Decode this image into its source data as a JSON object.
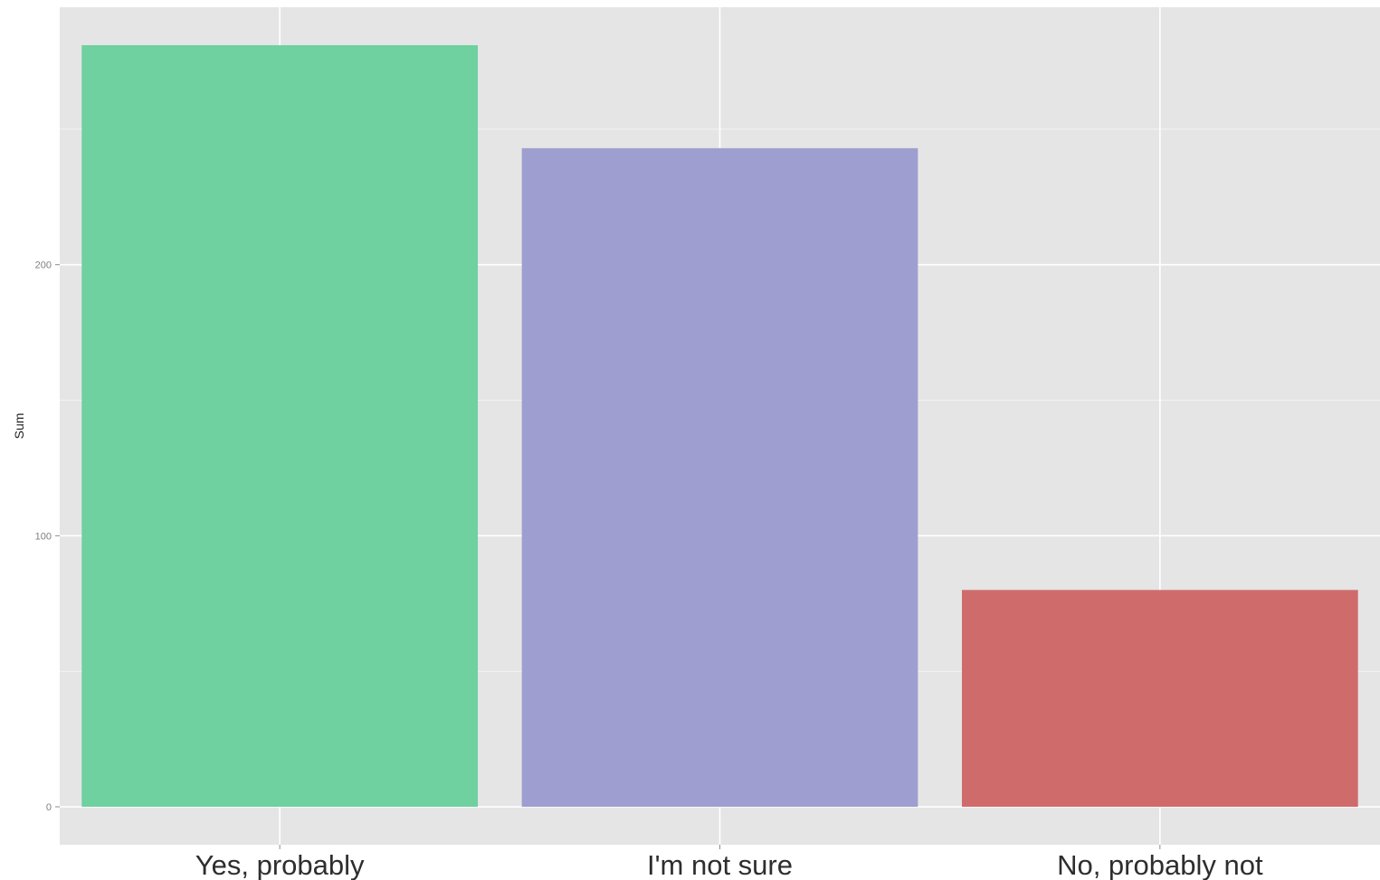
{
  "chart_data": {
    "type": "bar",
    "title": "",
    "xlabel": "",
    "ylabel": "Sum",
    "categories": [
      "Yes, probably",
      "I'm not sure",
      "No, probably not"
    ],
    "values": [
      281,
      243,
      80
    ],
    "colors": [
      "#6fd0a0",
      "#9f9ed0",
      "#d06b6b"
    ],
    "ylim": [
      -14,
      295
    ],
    "yticks": [
      0,
      100,
      200
    ],
    "ytick_labels": [
      "0",
      "100",
      "200"
    ],
    "grid": true,
    "legend": "none",
    "panel_background": "#e5e5e5",
    "grid_color": "#ffffff"
  }
}
